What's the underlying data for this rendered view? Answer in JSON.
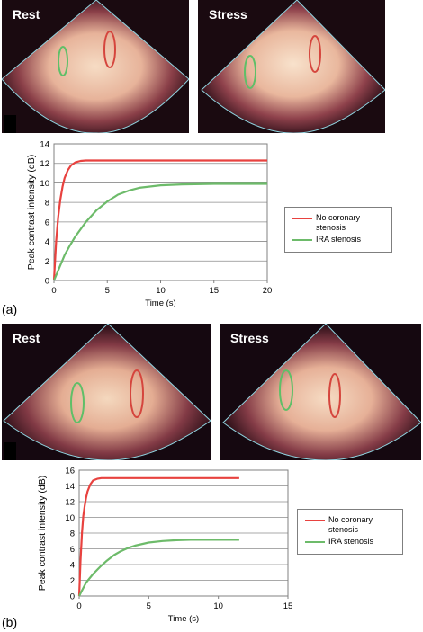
{
  "panels": [
    {
      "label": "(a)",
      "images": [
        {
          "label": "Rest"
        },
        {
          "label": "Stress"
        }
      ]
    },
    {
      "label": "(b)",
      "images": [
        {
          "label": "Rest"
        },
        {
          "label": "Stress"
        }
      ]
    }
  ],
  "chart_data": [
    {
      "type": "line",
      "xlabel": "Time (s)",
      "ylabel": "Peak contrast intensity (dB)",
      "xlim": [
        0,
        20
      ],
      "ylim": [
        0,
        14
      ],
      "xticks": [
        0,
        5,
        10,
        15,
        20
      ],
      "yticks": [
        0,
        2,
        4,
        6,
        8,
        10,
        12,
        14
      ],
      "grid": "horizontal",
      "legend_position": "right",
      "series": [
        {
          "name": "No coronary stenosis",
          "color": "#e8423f",
          "x": [
            0,
            0.2,
            0.4,
            0.6,
            0.8,
            1.0,
            1.3,
            1.6,
            2.0,
            2.5,
            3.0,
            3.5,
            4.0,
            6.0,
            10.0,
            15.0,
            20.0
          ],
          "y": [
            0,
            4.0,
            6.5,
            8.3,
            9.6,
            10.5,
            11.3,
            11.8,
            12.1,
            12.25,
            12.3,
            12.3,
            12.3,
            12.3,
            12.3,
            12.3,
            12.3
          ]
        },
        {
          "name": "IRA stenosis",
          "color": "#6dbb6a",
          "x": [
            0,
            0.5,
            1.0,
            1.5,
            2.0,
            3.0,
            4.0,
            5.0,
            6.0,
            7.0,
            8.0,
            10.0,
            12.0,
            15.0,
            20.0
          ],
          "y": [
            0,
            1.3,
            2.6,
            3.6,
            4.5,
            6.0,
            7.2,
            8.1,
            8.8,
            9.2,
            9.5,
            9.75,
            9.85,
            9.9,
            9.9
          ]
        }
      ]
    },
    {
      "type": "line",
      "xlabel": "Time (s)",
      "ylabel": "Peak contrast intensity (dB)",
      "xlim": [
        0,
        15
      ],
      "ylim": [
        0,
        16
      ],
      "xticks": [
        0,
        5,
        10,
        15
      ],
      "yticks": [
        0,
        2,
        4,
        6,
        8,
        10,
        12,
        14,
        16
      ],
      "grid": "horizontal",
      "legend_position": "right",
      "series": [
        {
          "name": "No coronary stenosis",
          "color": "#e8423f",
          "x": [
            0,
            0.1,
            0.2,
            0.3,
            0.4,
            0.5,
            0.6,
            0.8,
            1.0,
            1.3,
            1.6,
            2.0,
            4.0,
            8.0,
            11.5
          ],
          "y": [
            0,
            4.5,
            8.0,
            10.2,
            11.5,
            12.5,
            13.3,
            14.2,
            14.7,
            14.9,
            15.0,
            15.0,
            15.0,
            15.0,
            15.0
          ]
        },
        {
          "name": "IRA stenosis",
          "color": "#6dbb6a",
          "x": [
            0,
            0.2,
            0.5,
            1.0,
            1.5,
            2.0,
            2.5,
            3.0,
            3.5,
            4.0,
            5.0,
            6.0,
            7.0,
            8.0,
            9.0,
            10.0,
            11.5
          ],
          "y": [
            0,
            0.7,
            1.7,
            2.8,
            3.7,
            4.5,
            5.2,
            5.7,
            6.1,
            6.4,
            6.8,
            7.0,
            7.1,
            7.15,
            7.15,
            7.15,
            7.15
          ]
        }
      ]
    }
  ]
}
